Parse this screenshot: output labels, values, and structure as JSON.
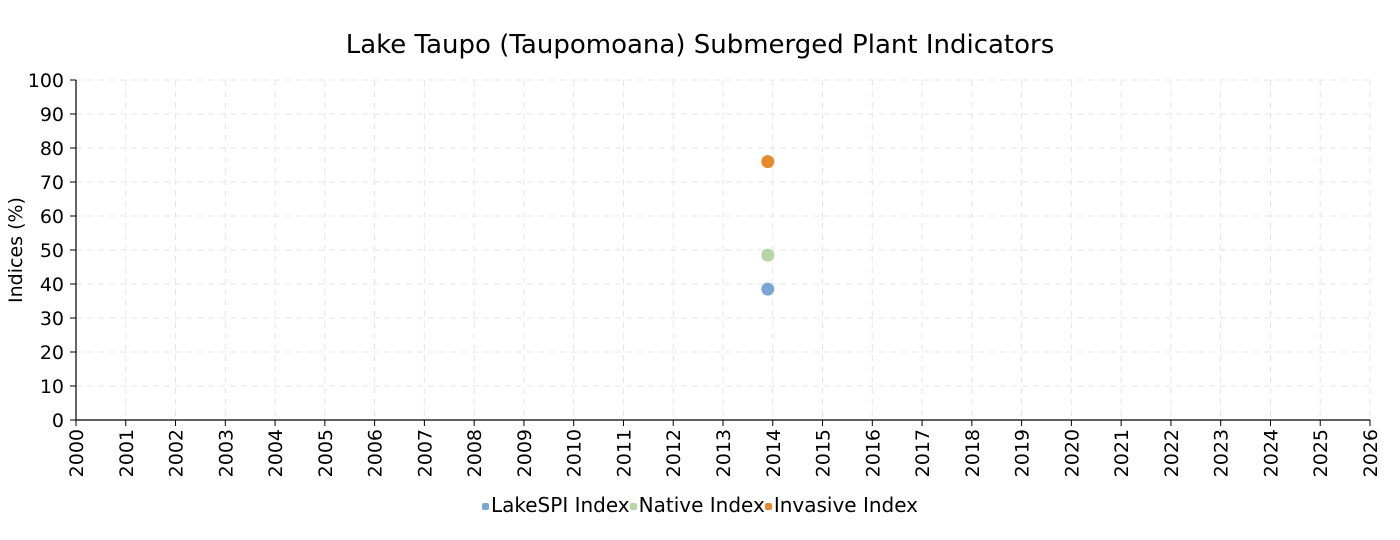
{
  "chart_data": {
    "type": "scatter",
    "title": "Lake Taupo (Taupomoana) Submerged Plant Indicators",
    "xlabel": "",
    "ylabel": "Indices (%)",
    "xlim": [
      2000,
      2026
    ],
    "ylim": [
      0,
      100
    ],
    "x_ticks": [
      "2000",
      "2001",
      "2002",
      "2003",
      "2004",
      "2005",
      "2006",
      "2007",
      "2008",
      "2009",
      "2010",
      "2011",
      "2012",
      "2013",
      "2014",
      "2015",
      "2016",
      "2017",
      "2018",
      "2019",
      "2020",
      "2021",
      "2022",
      "2023",
      "2024",
      "2025",
      "2026"
    ],
    "y_ticks": [
      "0",
      "10",
      "20",
      "30",
      "40",
      "50",
      "60",
      "70",
      "80",
      "90",
      "100"
    ],
    "grid": true,
    "legend_position": "bottom-center",
    "series": [
      {
        "name": "LakeSPI Index",
        "color": "#7aa6d6",
        "points": [
          {
            "x": 2013.9,
            "y": 38.5
          }
        ]
      },
      {
        "name": "Native Index",
        "color": "#b3d6a3",
        "points": [
          {
            "x": 2013.9,
            "y": 48.5
          }
        ]
      },
      {
        "name": "Invasive Index",
        "color": "#e8892e",
        "points": [
          {
            "x": 2013.9,
            "y": 76
          }
        ]
      }
    ]
  }
}
